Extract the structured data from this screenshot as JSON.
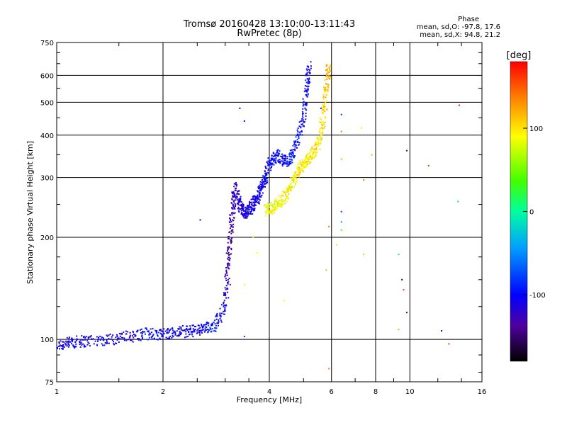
{
  "header": {
    "title": "Tromsø 20160428 13:10:00-13:11:43",
    "subtitle": "RwPretec (8p)"
  },
  "phase_info": {
    "heading": "Phase",
    "o_line": "mean, sd,O: -97.8, 17.6",
    "x_line": "mean, sd,X:  94.8, 21.2"
  },
  "colorbar": {
    "unit_label": "[deg]",
    "tick_labels": [
      "100",
      "0",
      "-100"
    ],
    "tick_values": [
      100,
      0,
      -100
    ],
    "range": [
      -180,
      180
    ]
  },
  "chart_data": {
    "type": "scatter",
    "xlabel": "Frequency [MHz]",
    "ylabel": "Stationary phase Virtual Height [km]",
    "xscale": "log",
    "yscale": "log",
    "xlim": [
      1,
      16
    ],
    "ylim": [
      75,
      750
    ],
    "x_ticks": [
      1,
      2,
      4,
      6,
      8,
      10,
      16
    ],
    "x_tick_labels": [
      "1",
      "2",
      "4",
      "6",
      "8",
      "10",
      "16"
    ],
    "y_ticks": [
      75,
      100,
      200,
      300,
      400,
      500,
      600,
      750
    ],
    "y_tick_labels": [
      "75",
      "100",
      "200",
      "300",
      "400",
      "500",
      "600",
      "750"
    ],
    "grid": true,
    "color_scale": "phase in degrees, -180 (black/purple) to 180 (red)",
    "series": [
      {
        "trace": [
          [
            1.0,
            96,
            -110
          ],
          [
            1.1,
            98,
            -105
          ],
          [
            1.2,
            99,
            -110
          ],
          [
            1.4,
            100,
            -105
          ],
          [
            1.6,
            102,
            -110
          ],
          [
            1.8,
            104,
            -100
          ],
          [
            2.0,
            104,
            -100
          ],
          [
            2.2,
            105,
            -105
          ],
          [
            2.4,
            106,
            -110
          ],
          [
            2.6,
            107,
            -100
          ],
          [
            2.8,
            110,
            -90
          ],
          [
            3.0,
            125,
            -110
          ],
          [
            3.05,
            160,
            -130
          ],
          [
            3.1,
            200,
            -140
          ],
          [
            3.15,
            240,
            -120
          ],
          [
            3.2,
            280,
            -130
          ],
          [
            3.3,
            250,
            -110
          ],
          [
            3.4,
            235,
            -115
          ],
          [
            3.5,
            240,
            -110
          ],
          [
            3.6,
            250,
            -110
          ],
          [
            3.7,
            260,
            -110
          ],
          [
            3.8,
            280,
            -100
          ],
          [
            3.9,
            300,
            -105
          ],
          [
            4.0,
            330,
            -100
          ],
          [
            4.2,
            350,
            -100
          ],
          [
            4.4,
            335,
            -100
          ],
          [
            4.6,
            340,
            -95
          ],
          [
            4.8,
            380,
            -100
          ],
          [
            5.0,
            450,
            -100
          ],
          [
            5.1,
            550,
            -100
          ],
          [
            5.2,
            640,
            -110
          ]
        ]
      },
      {
        "trace": [
          [
            3.9,
            240,
            90
          ],
          [
            4.1,
            245,
            85
          ],
          [
            4.3,
            255,
            90
          ],
          [
            4.5,
            270,
            95
          ],
          [
            4.7,
            300,
            90
          ],
          [
            4.9,
            320,
            100
          ],
          [
            5.1,
            335,
            95
          ],
          [
            5.3,
            350,
            100
          ],
          [
            5.5,
            380,
            95
          ],
          [
            5.7,
            450,
            100
          ],
          [
            5.8,
            550,
            110
          ],
          [
            5.9,
            640,
            120
          ]
        ]
      },
      {
        "points": [
          [
            2.55,
            225,
            -100
          ],
          [
            3.3,
            480,
            -100
          ],
          [
            3.4,
            440,
            -100
          ],
          [
            5.6,
            480,
            -90
          ],
          [
            6.4,
            460,
            -80
          ],
          [
            6.4,
            410,
            140
          ],
          [
            6.4,
            340,
            40
          ],
          [
            6.4,
            238,
            -80
          ],
          [
            6.4,
            222,
            -40
          ],
          [
            6.4,
            210,
            40
          ],
          [
            7.3,
            420,
            100
          ],
          [
            7.8,
            350,
            120
          ],
          [
            7.4,
            295,
            140
          ],
          [
            9.8,
            360,
            -130
          ],
          [
            11.3,
            325,
            160
          ],
          [
            13.8,
            490,
            170
          ],
          [
            13.7,
            255,
            -20
          ],
          [
            9.3,
            178,
            -10
          ],
          [
            9.5,
            150,
            -150
          ],
          [
            9.6,
            140,
            160
          ],
          [
            9.8,
            120,
            -120
          ],
          [
            9.3,
            107,
            120
          ],
          [
            12.3,
            106,
            -100
          ],
          [
            12.9,
            97,
            160
          ],
          [
            7.4,
            178,
            60
          ],
          [
            6.2,
            190,
            100
          ],
          [
            5.9,
            215,
            140
          ],
          [
            5.8,
            160,
            120
          ],
          [
            3.6,
            200,
            80
          ],
          [
            3.7,
            180,
            90
          ],
          [
            3.4,
            145,
            90
          ],
          [
            3.1,
            145,
            -110
          ],
          [
            3.4,
            102,
            -80
          ],
          [
            4.4,
            130,
            80
          ],
          [
            5.9,
            82,
            140
          ]
        ]
      }
    ]
  }
}
